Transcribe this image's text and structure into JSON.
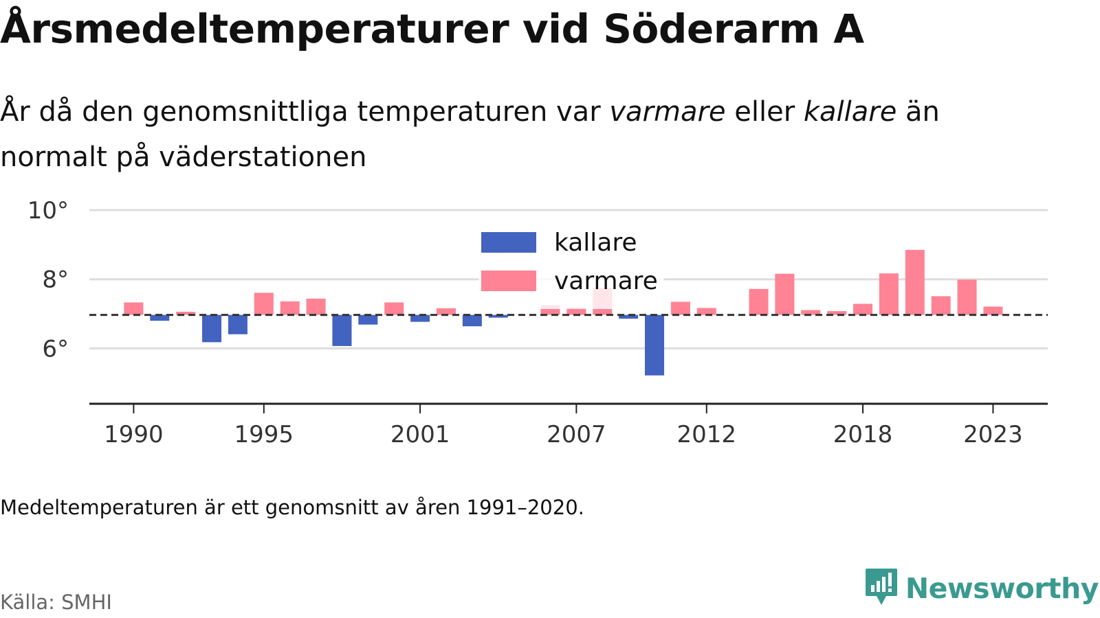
{
  "title": "Årsmedeltemperaturer vid Söderarm A",
  "subtitle": {
    "part1": "År då den genomsnittliga temperaturen var ",
    "warm_word": "varmare",
    "part2": " eller ",
    "cold_word": "kallare",
    "part3": " än normalt på väderstationen"
  },
  "note": "Medeltemperaturen är ett genomsnitt av åren 1991–2020.",
  "source": "Källa: SMHI",
  "brand": {
    "name": "Newsworthy",
    "icon": "newsworthy-logo-icon",
    "color": "#3a9a90"
  },
  "colors": {
    "kallare": "#4263c0",
    "varmare": "#ff8395",
    "baseline": "#333333",
    "grid": "#dddddd",
    "axis": "#222222"
  },
  "chart_data": {
    "type": "bar",
    "title": "Årsmedeltemperaturer vid Söderarm A",
    "xlabel": "",
    "ylabel": "",
    "ylim": [
      4.4,
      10
    ],
    "xlim": [
      1988.3,
      2025.1
    ],
    "grid": true,
    "baseline": 6.97,
    "legend": {
      "position": "top-center",
      "entries": [
        {
          "name": "kallare",
          "color": "#4263c0"
        },
        {
          "name": "varmare",
          "color": "#ff8395"
        }
      ]
    },
    "y_ticks": [
      {
        "value": 6,
        "label": "6°"
      },
      {
        "value": 8,
        "label": "8°"
      },
      {
        "value": 10,
        "label": "10°"
      }
    ],
    "x_ticks": [
      {
        "value": 1990,
        "label": "1990"
      },
      {
        "value": 1995,
        "label": "1995"
      },
      {
        "value": 2001,
        "label": "2001"
      },
      {
        "value": 2007,
        "label": "2007"
      },
      {
        "value": 2012,
        "label": "2012"
      },
      {
        "value": 2018,
        "label": "2018"
      },
      {
        "value": 2023,
        "label": "2023"
      }
    ],
    "x": [
      1990,
      1991,
      1992,
      1993,
      1994,
      1995,
      1996,
      1997,
      1998,
      1999,
      2000,
      2001,
      2002,
      2003,
      2004,
      2005,
      2006,
      2007,
      2008,
      2009,
      2010,
      2011,
      2012,
      2013,
      2014,
      2015,
      2016,
      2017,
      2018,
      2019,
      2020,
      2021,
      2022,
      2023
    ],
    "values": [
      7.33,
      6.8,
      7.06,
      6.18,
      6.41,
      7.61,
      7.36,
      7.44,
      6.07,
      6.69,
      7.33,
      6.77,
      7.16,
      6.64,
      6.89,
      null,
      7.25,
      7.18,
      7.75,
      6.86,
      5.22,
      7.35,
      7.17,
      null,
      7.72,
      8.16,
      7.11,
      7.08,
      7.29,
      8.17,
      8.85,
      7.51,
      7.99,
      7.21
    ]
  }
}
